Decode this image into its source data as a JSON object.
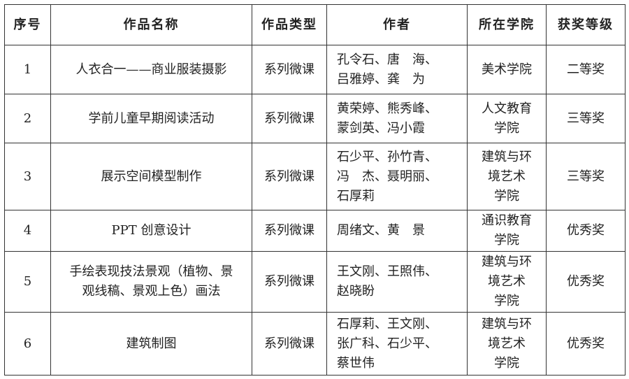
{
  "headers": [
    "序号",
    "作品名称",
    "作品类型",
    "作者",
    "所在学院",
    "获奖等级"
  ],
  "rows": [
    {
      "no": "1",
      "title": "人衣合一——商业服装摄影",
      "type": "系列微课",
      "authors": "孔令石、唐　海、\n吕雅婷、龚　为",
      "college": "美术学院",
      "award": "二等奖"
    },
    {
      "no": "2",
      "title": "学前儿童早期阅读活动",
      "type": "系列微课",
      "authors": "黄荣婷、熊秀峰、\n蒙剑英、冯小霞",
      "college": "人文教育\n学院",
      "award": "三等奖"
    },
    {
      "no": "3",
      "title": "展示空间模型制作",
      "type": "系列微课",
      "authors": "石少平、孙竹青、\n冯　杰、聂明丽、\n石厚莉",
      "college": "建筑与环\n境艺术\n学院",
      "award": "三等奖"
    },
    {
      "no": "4",
      "title": "PPT 创意设计",
      "type": "系列微课",
      "authors": "周绪文、黄　景",
      "college": "通识教育\n学院",
      "award": "优秀奖"
    },
    {
      "no": "5",
      "title": "手绘表现技法景观（植物、景\n观线稿、景观上色）画法",
      "type": "系列微课",
      "authors": "王文刚、王照伟、\n赵晓盼",
      "college": "建筑与环\n境艺术\n学院",
      "award": "优秀奖"
    },
    {
      "no": "6",
      "title": "建筑制图",
      "type": "系列微课",
      "authors": "石厚莉、王文刚、\n张广科、石少平、\n蔡世伟",
      "college": "建筑与环\n境艺术\n学院",
      "award": "优秀奖"
    }
  ]
}
